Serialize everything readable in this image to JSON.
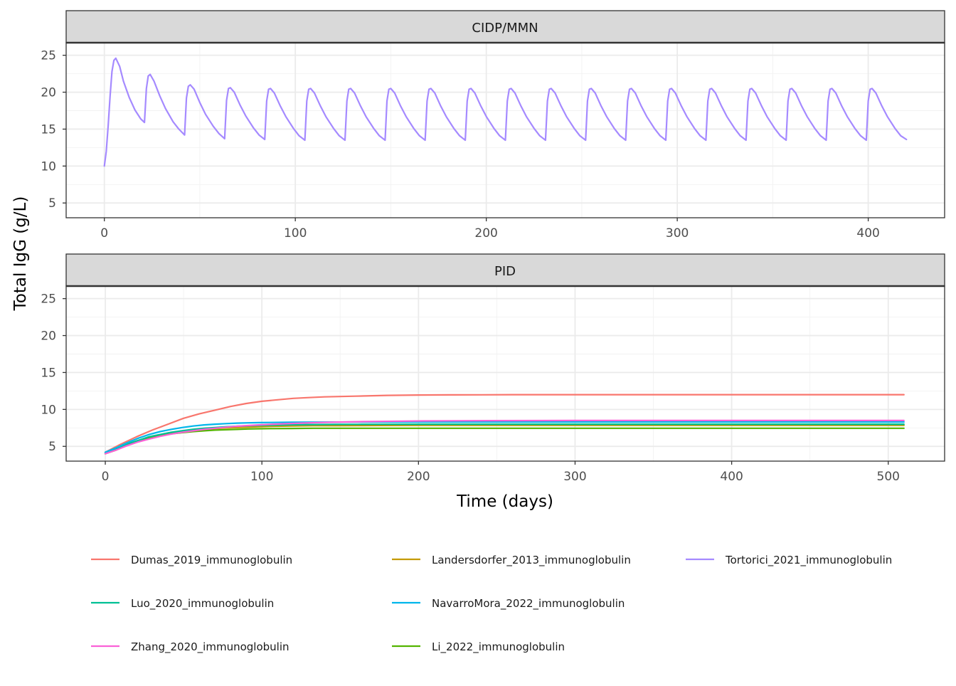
{
  "chart_data": {
    "type": "line",
    "ylabel": "Total IgG (g/L)",
    "xlabel": "Time (days)",
    "legend_position": "bottom",
    "series_colors": {
      "Dumas_2019_immunoglobulin": "#F8766D",
      "Landersdorfer_2013_immunoglobulin": "#C49A00",
      "Li_2022_immunoglobulin": "#53B400",
      "Luo_2020_immunoglobulin": "#00C094",
      "NavarroMora_2022_immunoglobulin": "#00B6EB",
      "Tortorici_2021_immunoglobulin": "#A58AFF",
      "Zhang_2020_immunoglobulin": "#FB61D7"
    },
    "legend": [
      "Dumas_2019_immunoglobulin",
      "Luo_2020_immunoglobulin",
      "Zhang_2020_immunoglobulin",
      "Landersdorfer_2013_immunoglobulin",
      "NavarroMora_2022_immunoglobulin",
      "Li_2022_immunoglobulin",
      "Tortorici_2021_immunoglobulin"
    ],
    "panels": [
      {
        "strip": "CIDP/MMN",
        "xlim": [
          -20,
          440
        ],
        "ylim": [
          3,
          26.7
        ],
        "xticks": [
          0,
          100,
          200,
          300,
          400
        ],
        "yticks": [
          5,
          10,
          15,
          20,
          25
        ],
        "series": [
          {
            "name": "Tortorici_2021_immunoglobulin",
            "x": [
              0,
              1,
              2,
              3,
              4,
              5,
              6,
              8,
              10,
              13,
              16,
              19,
              21,
              22,
              23,
              24,
              26,
              29,
              32,
              36,
              39,
              42,
              43,
              44,
              45,
              47,
              50,
              53,
              57,
              60,
              63,
              64,
              65,
              66,
              68,
              71,
              74,
              78,
              81,
              84,
              85,
              86,
              87,
              89,
              92,
              95,
              99,
              102,
              105,
              106,
              107,
              108,
              110,
              113,
              116,
              120,
              123,
              126,
              127,
              128,
              129,
              131,
              134,
              137,
              141,
              144,
              147,
              148,
              149,
              150,
              152,
              155,
              158,
              162,
              165,
              168,
              169,
              170,
              171,
              173,
              176,
              179,
              183,
              186,
              189,
              190,
              191,
              192,
              194,
              197,
              200,
              204,
              207,
              210,
              211,
              212,
              213,
              215,
              218,
              221,
              225,
              228,
              231,
              232,
              233,
              234,
              236,
              239,
              242,
              246,
              249,
              252,
              253,
              254,
              255,
              257,
              260,
              263,
              267,
              270,
              273,
              274,
              275,
              276,
              278,
              281,
              284,
              288,
              291,
              294,
              295,
              296,
              297,
              299,
              302,
              305,
              309,
              312,
              315,
              316,
              317,
              318,
              320,
              323,
              326,
              330,
              333,
              336,
              337,
              338,
              339,
              341,
              344,
              347,
              351,
              354,
              357,
              358,
              359,
              360,
              362,
              365,
              368,
              372,
              375,
              378,
              379,
              380,
              381,
              383,
              386,
              389,
              393,
              396,
              399,
              400,
              401,
              402,
              404,
              407,
              410,
              414,
              417,
              420
            ],
            "values": [
              10.0,
              12.0,
              15.5,
              19.5,
              22.8,
              24.3,
              24.6,
              23.5,
              21.5,
              19.3,
              17.6,
              16.4,
              15.9,
              20.5,
              22.2,
              22.4,
              21.5,
              19.5,
              17.8,
              16.0,
              15.0,
              14.2,
              19.2,
              20.8,
              21.0,
              20.4,
              18.6,
              17.0,
              15.4,
              14.4,
              13.7,
              18.9,
              20.5,
              20.6,
              20.0,
              18.3,
              16.8,
              15.2,
              14.2,
              13.6,
              18.8,
              20.4,
              20.5,
              19.9,
              18.2,
              16.7,
              15.1,
              14.1,
              13.5,
              18.8,
              20.4,
              20.5,
              19.9,
              18.2,
              16.7,
              15.1,
              14.1,
              13.5,
              18.8,
              20.4,
              20.5,
              19.9,
              18.2,
              16.7,
              15.1,
              14.1,
              13.5,
              18.8,
              20.4,
              20.5,
              19.9,
              18.2,
              16.7,
              15.1,
              14.1,
              13.5,
              18.8,
              20.4,
              20.5,
              19.9,
              18.2,
              16.7,
              15.1,
              14.1,
              13.5,
              18.8,
              20.4,
              20.5,
              19.9,
              18.2,
              16.7,
              15.1,
              14.1,
              13.5,
              18.8,
              20.4,
              20.5,
              19.9,
              18.2,
              16.7,
              15.1,
              14.1,
              13.5,
              18.8,
              20.4,
              20.5,
              19.9,
              18.2,
              16.7,
              15.1,
              14.1,
              13.5,
              18.8,
              20.4,
              20.5,
              19.9,
              18.2,
              16.7,
              15.1,
              14.1,
              13.5,
              18.8,
              20.4,
              20.5,
              19.9,
              18.2,
              16.7,
              15.1,
              14.1,
              13.5,
              18.8,
              20.4,
              20.5,
              19.9,
              18.2,
              16.7,
              15.1,
              14.1,
              13.5,
              18.8,
              20.4,
              20.5,
              19.9,
              18.2,
              16.7,
              15.1,
              14.1,
              13.5,
              18.8,
              20.4,
              20.5,
              19.9,
              18.2,
              16.7,
              15.1,
              14.1,
              13.5,
              18.8,
              20.4,
              20.5,
              19.9,
              18.2,
              16.7,
              15.1,
              14.1,
              13.5,
              18.8,
              20.4,
              20.5,
              19.9,
              18.2,
              16.7,
              15.1,
              14.1,
              13.5,
              18.8,
              20.4,
              20.5,
              19.9,
              18.2,
              16.7,
              15.1,
              14.1,
              13.6
            ]
          }
        ]
      },
      {
        "strip": "PID",
        "xlim": [
          -25,
          536
        ],
        "ylim": [
          3,
          26.7
        ],
        "xticks": [
          0,
          100,
          200,
          300,
          400,
          500
        ],
        "yticks": [
          5,
          10,
          15,
          20,
          25
        ],
        "series": [
          {
            "name": "Dumas_2019_immunoglobulin",
            "x": [
              0,
              10,
              20,
              30,
              40,
              50,
              60,
              70,
              80,
              90,
              100,
              110,
              120,
              130,
              140,
              150,
              160,
              180,
              200,
              220,
              240,
              260,
              280,
              300,
              320,
              340,
              360,
              380,
              400,
              420,
              440,
              460,
              480,
              500,
              510
            ],
            "values": [
              4.2,
              5.3,
              6.3,
              7.2,
              8.0,
              8.8,
              9.4,
              9.9,
              10.4,
              10.8,
              11.1,
              11.3,
              11.5,
              11.6,
              11.7,
              11.75,
              11.8,
              11.9,
              11.95,
              11.97,
              11.98,
              12.0,
              12.0,
              12.0,
              12.0,
              12.0,
              12.0,
              12.0,
              12.0,
              12.0,
              12.0,
              12.0,
              12.0,
              12.0,
              12.0
            ]
          },
          {
            "name": "Landersdorfer_2013_immunoglobulin",
            "x": [
              0,
              7,
              14,
              21,
              28,
              35,
              42,
              49,
              56,
              63,
              70,
              77,
              84,
              91,
              98,
              105,
              119,
              133,
              147,
              161,
              175,
              203,
              245,
              301,
              357,
              413,
              469,
              510
            ],
            "values": [
              4.1,
              4.6,
              5.3,
              5.8,
              6.2,
              6.5,
              6.8,
              7.0,
              7.15,
              7.3,
              7.4,
              7.5,
              7.55,
              7.6,
              7.65,
              7.7,
              7.75,
              7.8,
              7.8,
              7.82,
              7.83,
              7.85,
              7.85,
              7.85,
              7.85,
              7.85,
              7.85,
              7.85
            ]
          },
          {
            "name": "Li_2022_immunoglobulin",
            "x": [
              0,
              7,
              14,
              21,
              28,
              35,
              42,
              49,
              56,
              63,
              70,
              77,
              84,
              91,
              98,
              105,
              119,
              133,
              147,
              161,
              175,
              203,
              245,
              301,
              357,
              413,
              469,
              510
            ],
            "values": [
              4.0,
              4.5,
              5.2,
              5.7,
              6.1,
              6.4,
              6.7,
              6.85,
              7.0,
              7.1,
              7.2,
              7.25,
              7.3,
              7.35,
              7.38,
              7.4,
              7.42,
              7.45,
              7.45,
              7.45,
              7.45,
              7.45,
              7.45,
              7.45,
              7.45,
              7.45,
              7.45,
              7.45
            ]
          },
          {
            "name": "Luo_2020_immunoglobulin",
            "x": [
              0,
              7,
              14,
              21,
              28,
              35,
              42,
              49,
              56,
              63,
              70,
              77,
              84,
              91,
              98,
              105,
              119,
              133,
              147,
              161,
              175,
              203,
              245,
              301,
              357,
              413,
              469,
              510
            ],
            "values": [
              4.1,
              4.6,
              5.3,
              5.8,
              6.3,
              6.6,
              6.9,
              7.1,
              7.3,
              7.45,
              7.55,
              7.65,
              7.72,
              7.78,
              7.83,
              7.87,
              7.92,
              7.95,
              7.97,
              7.98,
              7.99,
              8.0,
              8.0,
              8.0,
              8.0,
              8.0,
              8.0,
              8.0
            ]
          },
          {
            "name": "NavarroMora_2022_immunoglobulin",
            "x": [
              0,
              7,
              14,
              21,
              28,
              35,
              42,
              49,
              56,
              63,
              70,
              77,
              84,
              91,
              98,
              105,
              119,
              133,
              147,
              161,
              175,
              203,
              245,
              301,
              357,
              413,
              469,
              510
            ],
            "values": [
              4.2,
              4.8,
              5.5,
              6.1,
              6.6,
              7.0,
              7.3,
              7.55,
              7.75,
              7.9,
              8.0,
              8.08,
              8.14,
              8.18,
              8.21,
              8.23,
              8.26,
              8.28,
              8.29,
              8.3,
              8.3,
              8.3,
              8.3,
              8.3,
              8.3,
              8.3,
              8.3,
              8.3
            ]
          },
          {
            "name": "Zhang_2020_immunoglobulin",
            "x": [
              0,
              7,
              14,
              21,
              28,
              35,
              42,
              49,
              56,
              63,
              70,
              77,
              84,
              91,
              98,
              105,
              119,
              133,
              147,
              161,
              175,
              203,
              245,
              301,
              357,
              413,
              469,
              510
            ],
            "values": [
              4.0,
              4.5,
              5.1,
              5.6,
              6.0,
              6.35,
              6.65,
              6.9,
              7.1,
              7.3,
              7.45,
              7.6,
              7.72,
              7.82,
              7.9,
              7.98,
              8.1,
              8.2,
              8.28,
              8.34,
              8.38,
              8.44,
              8.48,
              8.5,
              8.5,
              8.5,
              8.5,
              8.5
            ]
          }
        ]
      }
    ]
  }
}
